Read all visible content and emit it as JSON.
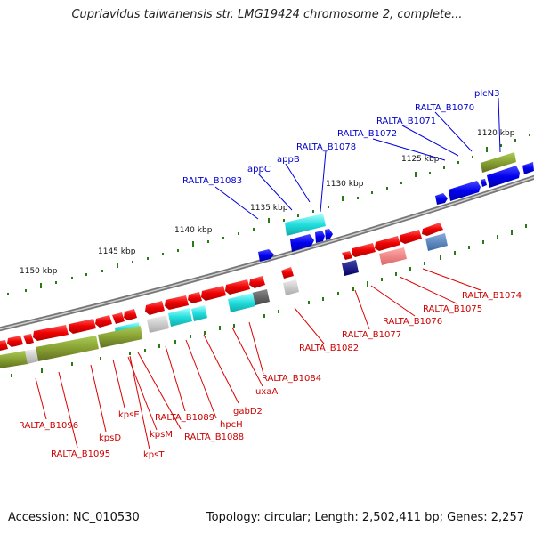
{
  "title": "Cupriavidus taiwanensis str. LMG19424 chromosome 2, complete...",
  "footer": {
    "accession": "Accession: NC_010530",
    "summary": "Topology: circular; Length: 2,502,411 bp; Genes: 2,257"
  },
  "ticks": [
    "1120 kbp",
    "1125 kbp",
    "1130 kbp",
    "1135 kbp",
    "1140 kbp",
    "1145 kbp",
    "1150 kbp"
  ],
  "colors": {
    "forward": "#0000ee",
    "reverse": "#dd0000",
    "backbone": "#888888",
    "tickmark": "#3a8a2a"
  },
  "genes_forward": [
    "plcN3",
    "RALTA_B1070",
    "RALTA_B1071",
    "RALTA_B1072",
    "RALTA_B1078",
    "appB",
    "appC",
    "RALTA_B1083"
  ],
  "genes_reverse": [
    "RALTA_B1074",
    "RALTA_B1075",
    "RALTA_B1076",
    "RALTA_B1077",
    "RALTA_B1082",
    "RALTA_B1084",
    "uxaA",
    "gabD2",
    "hpcH",
    "RALTA_B1088",
    "RALTA_B1089",
    "kpsM",
    "kpsT",
    "kpsE",
    "kpsD",
    "RALTA_B1095",
    "RALTA_B1096"
  ]
}
